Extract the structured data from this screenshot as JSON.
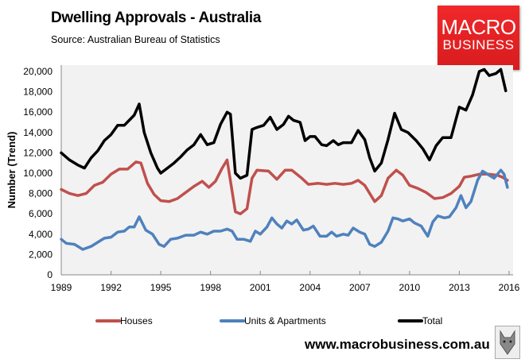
{
  "header": {
    "title": "Dwelling Approvals - Australia",
    "subtitle": "Source:  Australian Bureau of Statistics"
  },
  "logo": {
    "line1": "MACRO",
    "line2": "BUSINESS"
  },
  "footer": {
    "url": "www.macrobusiness.com.au"
  },
  "chart_data": {
    "type": "line",
    "title": "Dwelling Approvals - Australia",
    "xlabel": "",
    "ylabel": "Number (Trend)",
    "xlim": [
      1989,
      2016
    ],
    "ylim": [
      0,
      21000
    ],
    "x_ticks": [
      "1989",
      "1992",
      "1995",
      "1998",
      "2001",
      "2004",
      "2007",
      "2010",
      "2013",
      "2016"
    ],
    "y_ticks": [
      "0",
      "2,000",
      "4,000",
      "6,000",
      "8,000",
      "10,000",
      "12,000",
      "14,000",
      "16,000",
      "18,000",
      "20,000"
    ],
    "grid": false,
    "legend_position": "bottom",
    "series": [
      {
        "name": "Houses",
        "color": "#c0504d",
        "points": [
          [
            1989,
            8400
          ],
          [
            1989.5,
            8000
          ],
          [
            1990,
            7800
          ],
          [
            1990.5,
            8000
          ],
          [
            1991,
            8800
          ],
          [
            1991.5,
            9100
          ],
          [
            1992,
            9900
          ],
          [
            1992.5,
            10400
          ],
          [
            1993,
            10400
          ],
          [
            1993.5,
            11100
          ],
          [
            1993.8,
            11000
          ],
          [
            1994.2,
            9000
          ],
          [
            1994.6,
            7900
          ],
          [
            1995,
            7300
          ],
          [
            1995.5,
            7200
          ],
          [
            1996,
            7500
          ],
          [
            1996.5,
            8100
          ],
          [
            1997,
            8700
          ],
          [
            1997.5,
            9200
          ],
          [
            1997.9,
            8600
          ],
          [
            1998.3,
            9200
          ],
          [
            1998.7,
            10500
          ],
          [
            1999,
            11300
          ],
          [
            1999.5,
            6200
          ],
          [
            1999.8,
            6000
          ],
          [
            2000.2,
            6500
          ],
          [
            2000.5,
            9500
          ],
          [
            2000.8,
            10300
          ],
          [
            2001.5,
            10200
          ],
          [
            2002,
            9400
          ],
          [
            2002.5,
            10300
          ],
          [
            2002.9,
            10300
          ],
          [
            2003.5,
            9500
          ],
          [
            2003.9,
            8900
          ],
          [
            2004.5,
            9000
          ],
          [
            2005,
            8900
          ],
          [
            2005.5,
            9000
          ],
          [
            2006,
            8900
          ],
          [
            2006.5,
            9000
          ],
          [
            2006.9,
            9300
          ],
          [
            2007.3,
            8800
          ],
          [
            2007.9,
            7200
          ],
          [
            2008.3,
            7800
          ],
          [
            2008.7,
            9500
          ],
          [
            2009.2,
            10300
          ],
          [
            2009.6,
            9800
          ],
          [
            2010,
            8800
          ],
          [
            2010.5,
            8500
          ],
          [
            2011,
            8100
          ],
          [
            2011.5,
            7500
          ],
          [
            2012,
            7600
          ],
          [
            2012.5,
            8000
          ],
          [
            2013,
            8700
          ],
          [
            2013.3,
            9600
          ],
          [
            2013.7,
            9700
          ],
          [
            2014.2,
            9900
          ],
          [
            2014.8,
            9900
          ],
          [
            2015.3,
            9800
          ],
          [
            2015.6,
            9600
          ],
          [
            2015.9,
            9300
          ]
        ]
      },
      {
        "name": "Units & Apartments",
        "color": "#4f81bd",
        "points": [
          [
            1989,
            3500
          ],
          [
            1989.3,
            3100
          ],
          [
            1989.8,
            3000
          ],
          [
            1990.3,
            2500
          ],
          [
            1990.8,
            2800
          ],
          [
            1991.2,
            3200
          ],
          [
            1991.6,
            3600
          ],
          [
            1992,
            3700
          ],
          [
            1992.4,
            4200
          ],
          [
            1992.8,
            4300
          ],
          [
            1993.1,
            4700
          ],
          [
            1993.4,
            4700
          ],
          [
            1993.7,
            5700
          ],
          [
            1994.1,
            4400
          ],
          [
            1994.5,
            4000
          ],
          [
            1994.9,
            3000
          ],
          [
            1995.2,
            2800
          ],
          [
            1995.6,
            3500
          ],
          [
            1996,
            3600
          ],
          [
            1996.5,
            3900
          ],
          [
            1997,
            3900
          ],
          [
            1997.4,
            4200
          ],
          [
            1997.8,
            4000
          ],
          [
            1998.2,
            4300
          ],
          [
            1998.6,
            4300
          ],
          [
            1999,
            4500
          ],
          [
            1999.3,
            4300
          ],
          [
            1999.6,
            3500
          ],
          [
            2000,
            3500
          ],
          [
            2000.4,
            3300
          ],
          [
            2000.7,
            4300
          ],
          [
            2001,
            4000
          ],
          [
            2001.4,
            4700
          ],
          [
            2001.7,
            5600
          ],
          [
            2002,
            5000
          ],
          [
            2002.3,
            4600
          ],
          [
            2002.6,
            5300
          ],
          [
            2002.9,
            5000
          ],
          [
            2003.2,
            5400
          ],
          [
            2003.6,
            4400
          ],
          [
            2003.9,
            4500
          ],
          [
            2004.2,
            4800
          ],
          [
            2004.6,
            3800
          ],
          [
            2005,
            3800
          ],
          [
            2005.3,
            4200
          ],
          [
            2005.6,
            3800
          ],
          [
            2006,
            4000
          ],
          [
            2006.3,
            3900
          ],
          [
            2006.6,
            4600
          ],
          [
            2007,
            4200
          ],
          [
            2007.3,
            4000
          ],
          [
            2007.6,
            3000
          ],
          [
            2007.9,
            2800
          ],
          [
            2008.3,
            3200
          ],
          [
            2008.7,
            4300
          ],
          [
            2009,
            5600
          ],
          [
            2009.3,
            5500
          ],
          [
            2009.6,
            5300
          ],
          [
            2010,
            5500
          ],
          [
            2010.3,
            5100
          ],
          [
            2010.7,
            4800
          ],
          [
            2011.1,
            3800
          ],
          [
            2011.4,
            5200
          ],
          [
            2011.7,
            5800
          ],
          [
            2012.1,
            5600
          ],
          [
            2012.4,
            5700
          ],
          [
            2012.8,
            6600
          ],
          [
            2013.1,
            7800
          ],
          [
            2013.4,
            6600
          ],
          [
            2013.7,
            7200
          ],
          [
            2014.1,
            9300
          ],
          [
            2014.4,
            10200
          ],
          [
            2014.8,
            9800
          ],
          [
            2015.1,
            9500
          ],
          [
            2015.5,
            10300
          ],
          [
            2015.7,
            9900
          ],
          [
            2015.9,
            8600
          ]
        ]
      },
      {
        "name": "Total",
        "color": "#000000",
        "points": [
          [
            1989,
            12000
          ],
          [
            1989.5,
            11300
          ],
          [
            1990,
            10800
          ],
          [
            1990.4,
            10500
          ],
          [
            1990.8,
            11500
          ],
          [
            1991.2,
            12200
          ],
          [
            1991.6,
            13200
          ],
          [
            1992,
            13800
          ],
          [
            1992.4,
            14700
          ],
          [
            1992.8,
            14700
          ],
          [
            1993.1,
            15200
          ],
          [
            1993.4,
            15700
          ],
          [
            1993.7,
            16800
          ],
          [
            1994,
            14000
          ],
          [
            1994.4,
            12000
          ],
          [
            1994.8,
            10500
          ],
          [
            1995,
            10000
          ],
          [
            1995.4,
            10500
          ],
          [
            1995.8,
            11000
          ],
          [
            1996.2,
            11600
          ],
          [
            1996.6,
            12300
          ],
          [
            1997,
            12800
          ],
          [
            1997.4,
            13800
          ],
          [
            1997.8,
            12800
          ],
          [
            1998.2,
            13000
          ],
          [
            1998.6,
            14800
          ],
          [
            1999,
            16000
          ],
          [
            1999.2,
            15800
          ],
          [
            1999.5,
            10000
          ],
          [
            1999.8,
            9500
          ],
          [
            2000.2,
            9800
          ],
          [
            2000.5,
            14300
          ],
          [
            2000.8,
            14500
          ],
          [
            2001.2,
            14700
          ],
          [
            2001.6,
            15500
          ],
          [
            2002,
            14300
          ],
          [
            2002.4,
            14800
          ],
          [
            2002.7,
            15600
          ],
          [
            2003,
            15200
          ],
          [
            2003.4,
            15000
          ],
          [
            2003.7,
            13200
          ],
          [
            2004,
            13600
          ],
          [
            2004.3,
            13600
          ],
          [
            2004.7,
            12800
          ],
          [
            2005,
            12700
          ],
          [
            2005.4,
            13200
          ],
          [
            2005.7,
            12800
          ],
          [
            2006,
            13000
          ],
          [
            2006.5,
            13000
          ],
          [
            2006.9,
            14200
          ],
          [
            2007.3,
            13300
          ],
          [
            2007.6,
            11500
          ],
          [
            2007.9,
            10200
          ],
          [
            2008.3,
            11000
          ],
          [
            2008.7,
            13300
          ],
          [
            2009.1,
            15900
          ],
          [
            2009.5,
            14300
          ],
          [
            2009.9,
            14000
          ],
          [
            2010.4,
            13200
          ],
          [
            2010.8,
            12400
          ],
          [
            2011.2,
            11300
          ],
          [
            2011.6,
            12700
          ],
          [
            2012,
            13500
          ],
          [
            2012.5,
            13500
          ],
          [
            2013,
            16500
          ],
          [
            2013.4,
            16200
          ],
          [
            2013.8,
            17700
          ],
          [
            2014.2,
            20000
          ],
          [
            2014.5,
            20200
          ],
          [
            2014.8,
            19600
          ],
          [
            2015.2,
            19800
          ],
          [
            2015.5,
            20200
          ],
          [
            2015.8,
            18100
          ]
        ]
      }
    ]
  }
}
